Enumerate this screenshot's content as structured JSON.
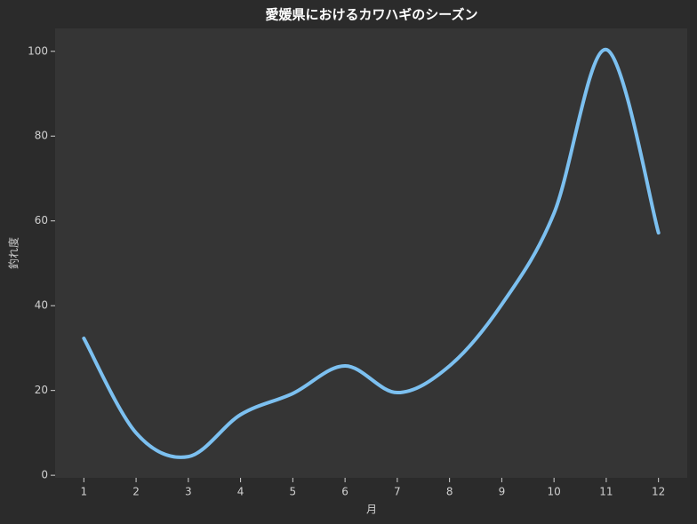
{
  "chart_data": {
    "type": "line",
    "title": "愛媛県におけるカワハギのシーズン",
    "x_label": "月",
    "y_label": "釣れ度",
    "x": [
      1,
      2,
      3,
      4,
      5,
      6,
      7,
      8,
      9,
      10,
      11,
      12
    ],
    "series": [
      {
        "name": "釣れ度",
        "color": "#7cc0f0",
        "values": [
          32.3,
          10,
          4.4,
          14.3,
          19.3,
          25.8,
          19.5,
          25.8,
          40.3,
          61.8,
          100.4,
          57.2
        ]
      }
    ],
    "xlim": [
      0.45,
      12.55
    ],
    "xticks": [
      1,
      2,
      3,
      4,
      5,
      6,
      7,
      8,
      9,
      10,
      11,
      12
    ],
    "ylim": [
      -0.6,
      105.4
    ],
    "yticks": [
      0,
      20,
      40,
      60,
      80,
      100
    ],
    "grid": false
  }
}
